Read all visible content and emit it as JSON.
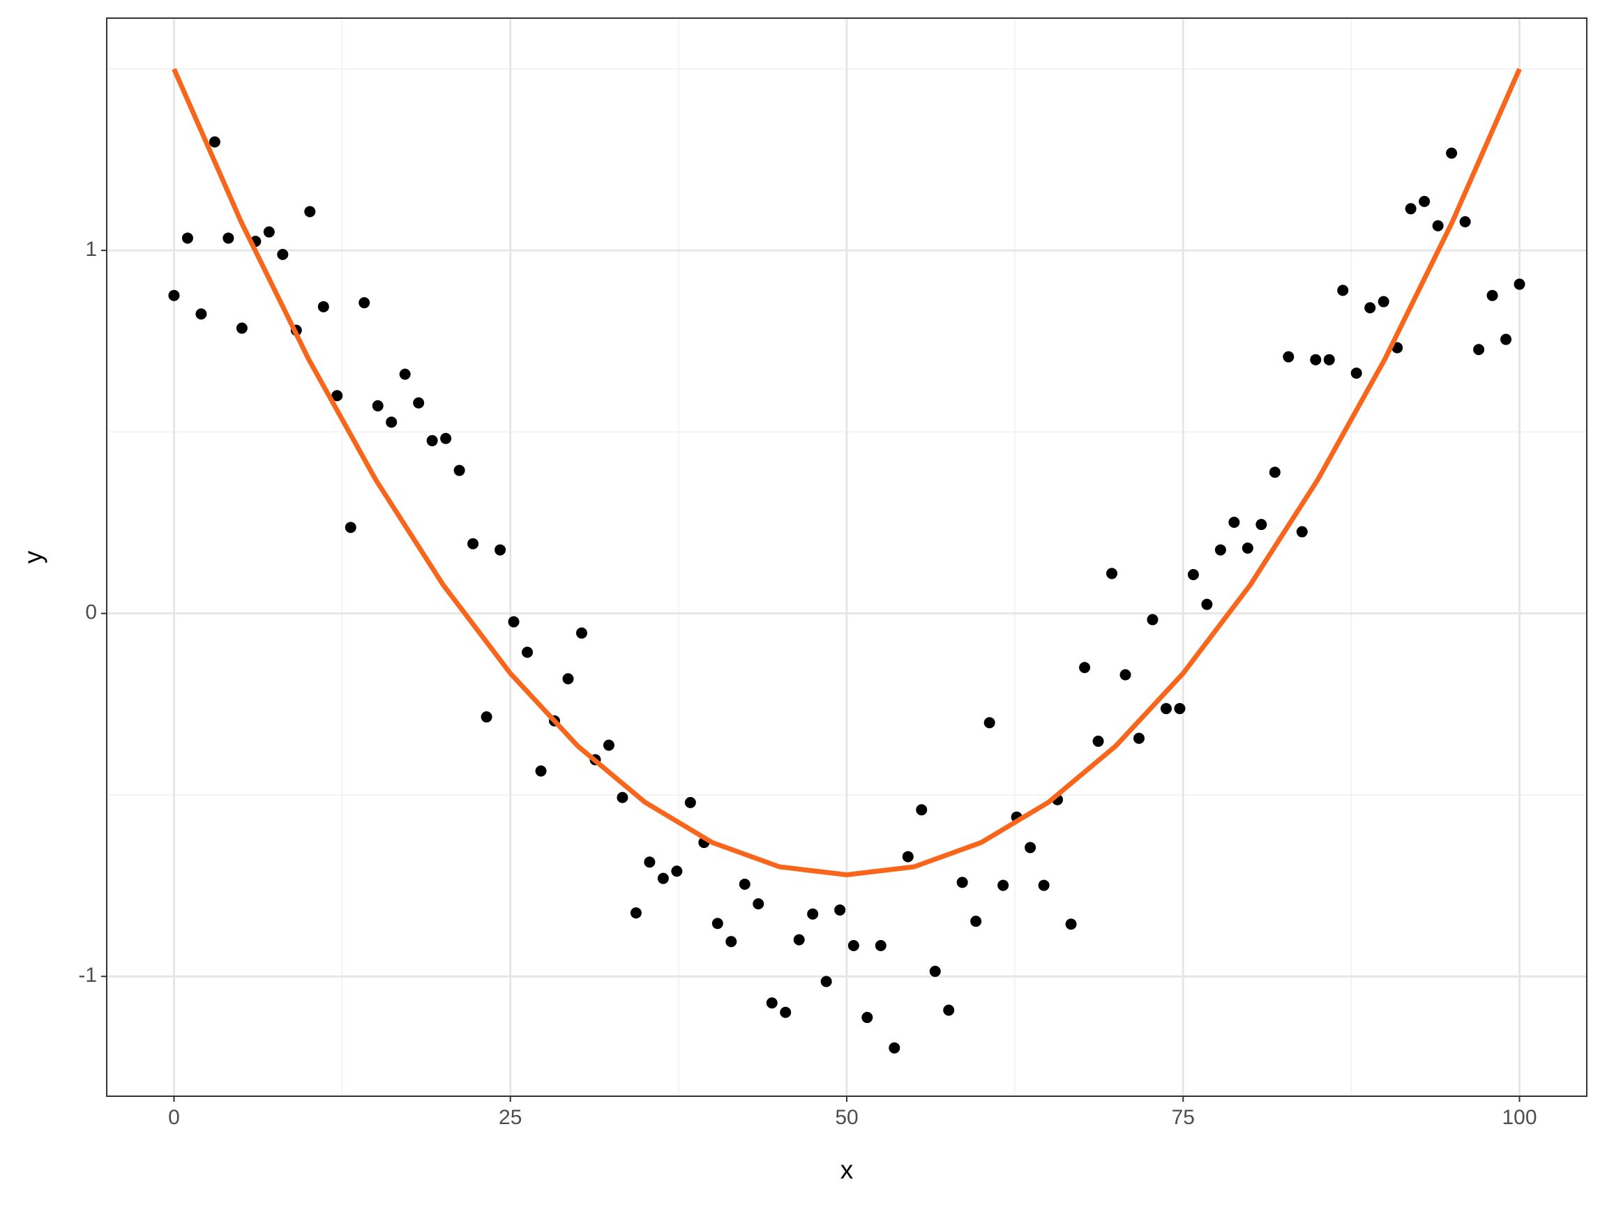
{
  "chart_data": {
    "type": "scatter",
    "xlabel": "x",
    "ylabel": "y",
    "xlim": [
      -5,
      105
    ],
    "ylim": [
      -1.33,
      1.64
    ],
    "xticks": [
      0,
      25,
      50,
      75,
      100
    ],
    "yticks": [
      -1,
      0,
      1
    ],
    "xminor": [
      12.5,
      37.5,
      62.5,
      87.5
    ],
    "yminor": [
      -0.5,
      0.5,
      1.5
    ],
    "grid": true,
    "series": [
      {
        "kind": "points",
        "color": "#000000",
        "x": [
          0,
          1.01,
          2.02,
          3.03,
          4.04,
          5.05,
          6.06,
          7.07,
          8.08,
          9.09,
          10.1,
          11.11,
          12.12,
          13.13,
          14.14,
          15.15,
          16.16,
          17.17,
          18.18,
          19.19,
          20.2,
          21.21,
          22.22,
          23.23,
          24.24,
          25.25,
          26.26,
          27.27,
          28.28,
          29.29,
          30.3,
          31.31,
          32.32,
          33.33,
          34.34,
          35.35,
          36.36,
          37.37,
          38.38,
          39.39,
          40.4,
          41.41,
          42.42,
          43.43,
          44.44,
          45.45,
          46.46,
          47.47,
          48.48,
          49.49,
          50.51,
          51.52,
          52.53,
          53.54,
          54.55,
          55.56,
          56.57,
          57.58,
          58.59,
          59.6,
          60.61,
          61.62,
          62.63,
          63.64,
          64.65,
          65.66,
          66.67,
          67.68,
          68.69,
          69.7,
          70.71,
          71.72,
          72.73,
          73.74,
          74.75,
          75.76,
          76.77,
          77.78,
          78.79,
          79.8,
          80.81,
          81.82,
          82.83,
          83.84,
          84.85,
          85.86,
          86.87,
          87.88,
          88.89,
          89.9,
          90.91,
          91.92,
          92.93,
          93.94,
          94.95,
          95.96,
          96.97,
          97.98,
          98.99,
          100
        ],
        "values": [
          0.876,
          1.034,
          0.825,
          1.299,
          1.034,
          0.786,
          1.025,
          1.051,
          0.989,
          0.78,
          1.107,
          0.845,
          0.6,
          0.237,
          0.856,
          0.572,
          0.527,
          0.659,
          0.58,
          0.476,
          0.482,
          0.394,
          0.192,
          -0.285,
          0.175,
          -0.023,
          -0.107,
          -0.434,
          -0.296,
          -0.18,
          -0.054,
          -0.403,
          -0.363,
          -0.507,
          -0.825,
          -0.685,
          -0.73,
          -0.71,
          -0.521,
          -0.631,
          -0.854,
          -0.904,
          -0.746,
          -0.8,
          -1.073,
          -1.099,
          -0.899,
          -0.828,
          -1.014,
          -0.817,
          -0.915,
          -1.113,
          -0.915,
          -1.197,
          -0.67,
          -0.541,
          -0.986,
          -1.093,
          -0.741,
          -0.848,
          -0.301,
          -0.749,
          -0.561,
          -0.645,
          -0.749,
          -0.513,
          -0.856,
          -0.149,
          -0.352,
          0.11,
          -0.169,
          -0.344,
          -0.017,
          -0.262,
          -0.262,
          0.107,
          0.025,
          0.175,
          0.251,
          0.18,
          0.245,
          0.389,
          0.707,
          0.225,
          0.699,
          0.699,
          0.89,
          0.662,
          0.842,
          0.859,
          0.732,
          1.115,
          1.135,
          1.068,
          1.268,
          1.079,
          0.727,
          0.876,
          0.755,
          0.907
        ]
      },
      {
        "kind": "line",
        "color": "#f8661c",
        "x": [
          0,
          5,
          10,
          15,
          20,
          25,
          30,
          35,
          40,
          45,
          50,
          55,
          60,
          65,
          70,
          75,
          80,
          85,
          90,
          95,
          100
        ],
        "values": [
          1.5,
          1.078,
          0.701,
          0.368,
          0.079,
          -0.165,
          -0.365,
          -0.52,
          -0.631,
          -0.698,
          -0.72,
          -0.698,
          -0.631,
          -0.52,
          -0.365,
          -0.165,
          0.079,
          0.368,
          0.701,
          1.078,
          1.5
        ]
      }
    ]
  }
}
